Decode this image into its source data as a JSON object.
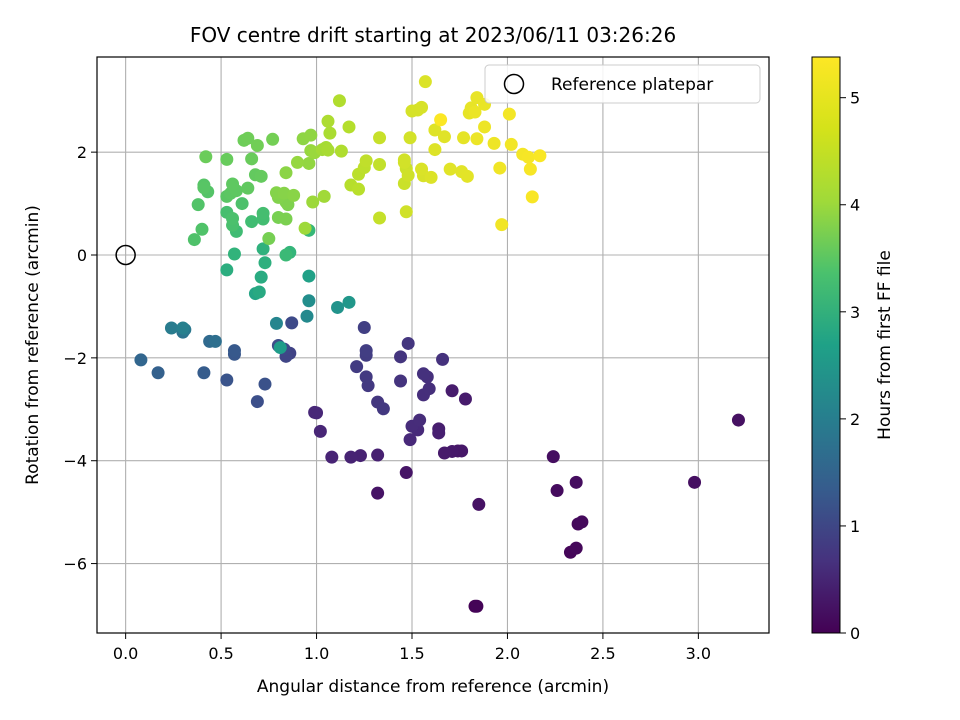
{
  "chart_data": {
    "type": "scatter",
    "title": "FOV centre drift starting at 2023/06/11 03:26:26",
    "xlabel": "Angular distance from reference (arcmin)",
    "ylabel": "Rotation from reference (arcmin)",
    "colorbar_label": "Hours from first FF file",
    "xlim": [
      -0.15,
      3.37
    ],
    "ylim": [
      -7.35,
      3.85
    ],
    "xticks": [
      0.0,
      0.5,
      1.0,
      1.5,
      2.0,
      2.5,
      3.0
    ],
    "xtick_labels": [
      "0.0",
      "0.5",
      "1.0",
      "1.5",
      "2.0",
      "2.5",
      "3.0"
    ],
    "yticks": [
      -6,
      -4,
      -2,
      0,
      2
    ],
    "ytick_labels": [
      "−6",
      "−4",
      "−2",
      "0",
      "2"
    ],
    "clim": [
      0,
      5.38
    ],
    "cticks": [
      0,
      1,
      2,
      3,
      4,
      5
    ],
    "ctick_labels": [
      "0",
      "1",
      "2",
      "3",
      "4",
      "5"
    ],
    "colormap": "viridis",
    "grid": true,
    "legend": {
      "placement": "upper right",
      "entries": [
        "Reference platepar"
      ]
    },
    "reference_point": {
      "x": 0.0,
      "y": 0.0,
      "label": "Reference platepar"
    },
    "points": [
      [
        1.83,
        -6.83,
        0.02
      ],
      [
        1.84,
        -6.83,
        0.05
      ],
      [
        2.33,
        -5.78,
        0.08
      ],
      [
        2.36,
        -5.7,
        0.1
      ],
      [
        2.37,
        -5.23,
        0.12
      ],
      [
        2.39,
        -5.19,
        0.14
      ],
      [
        2.26,
        -4.58,
        0.16
      ],
      [
        2.36,
        -4.42,
        0.18
      ],
      [
        2.24,
        -3.92,
        0.2
      ],
      [
        2.98,
        -4.42,
        0.22
      ],
      [
        3.21,
        -3.21,
        0.24
      ],
      [
        1.85,
        -4.85,
        0.26
      ],
      [
        1.32,
        -4.63,
        0.28
      ],
      [
        1.47,
        -4.23,
        0.3
      ],
      [
        1.74,
        -3.81,
        0.32
      ],
      [
        1.76,
        -3.81,
        0.34
      ],
      [
        1.71,
        -3.82,
        0.36
      ],
      [
        1.67,
        -3.85,
        0.38
      ],
      [
        1.78,
        -2.8,
        0.4
      ],
      [
        1.71,
        -2.64,
        0.42
      ],
      [
        1.64,
        -3.38,
        0.44
      ],
      [
        1.64,
        -3.46,
        0.46
      ],
      [
        1.32,
        -3.89,
        0.48
      ],
      [
        1.23,
        -3.9,
        0.5
      ],
      [
        1.18,
        -3.93,
        0.52
      ],
      [
        1.08,
        -3.93,
        0.54
      ],
      [
        1.02,
        -3.43,
        0.56
      ],
      [
        1.0,
        -3.07,
        0.58
      ],
      [
        0.99,
        -3.06,
        0.6
      ],
      [
        1.49,
        -3.59,
        0.62
      ],
      [
        1.53,
        -3.4,
        0.64
      ],
      [
        1.5,
        -3.33,
        0.66
      ],
      [
        1.54,
        -3.21,
        0.68
      ],
      [
        1.56,
        -2.72,
        0.7
      ],
      [
        1.59,
        -2.6,
        0.72
      ],
      [
        1.58,
        -2.37,
        0.74
      ],
      [
        1.56,
        -2.31,
        0.76
      ],
      [
        1.66,
        -2.03,
        0.78
      ],
      [
        1.44,
        -2.45,
        0.8
      ],
      [
        1.44,
        -1.98,
        0.82
      ],
      [
        1.48,
        -1.72,
        0.84
      ],
      [
        1.32,
        -2.86,
        0.86
      ],
      [
        1.35,
        -2.99,
        0.88
      ],
      [
        1.27,
        -2.54,
        0.9
      ],
      [
        1.26,
        -2.37,
        0.92
      ],
      [
        1.21,
        -2.17,
        0.94
      ],
      [
        1.26,
        -1.95,
        0.96
      ],
      [
        1.26,
        -1.86,
        0.98
      ],
      [
        1.25,
        -1.41,
        1.0
      ],
      [
        0.86,
        -1.91,
        1.05
      ],
      [
        0.84,
        -1.97,
        1.1
      ],
      [
        0.83,
        -1.83,
        1.15
      ],
      [
        0.87,
        -1.32,
        1.2
      ],
      [
        0.8,
        -1.76,
        1.25
      ],
      [
        0.69,
        -2.85,
        1.3
      ],
      [
        0.73,
        -2.51,
        1.35
      ],
      [
        0.53,
        -2.43,
        1.4
      ],
      [
        0.57,
        -1.93,
        1.45
      ],
      [
        0.57,
        -1.86,
        1.5
      ],
      [
        0.41,
        -2.29,
        1.55
      ],
      [
        0.17,
        -2.29,
        1.65
      ],
      [
        0.08,
        -2.04,
        1.75
      ],
      [
        0.44,
        -1.68,
        1.85
      ],
      [
        0.47,
        -1.68,
        1.95
      ],
      [
        0.3,
        -1.5,
        2.05
      ],
      [
        0.31,
        -1.45,
        2.15
      ],
      [
        0.24,
        -1.42,
        2.25
      ],
      [
        0.3,
        -1.42,
        2.35
      ],
      [
        0.79,
        -1.33,
        2.45
      ],
      [
        0.95,
        -1.19,
        2.55
      ],
      [
        0.96,
        -0.89,
        2.65
      ],
      [
        1.11,
        -1.02,
        2.75
      ],
      [
        1.17,
        -0.92,
        2.85
      ],
      [
        0.81,
        -1.8,
        2.95
      ],
      [
        0.96,
        -0.41,
        3.05
      ],
      [
        0.68,
        -0.75,
        3.15
      ],
      [
        0.7,
        -0.72,
        3.25
      ],
      [
        0.71,
        -0.43,
        3.3
      ],
      [
        0.53,
        -0.29,
        3.35
      ],
      [
        0.73,
        -0.15,
        3.4
      ],
      [
        0.72,
        0.12,
        3.45
      ],
      [
        0.57,
        0.02,
        3.5
      ],
      [
        0.86,
        0.05,
        3.55
      ],
      [
        0.96,
        0.48,
        3.6
      ],
      [
        0.84,
        0.0,
        3.65
      ],
      [
        0.58,
        0.46,
        3.7
      ],
      [
        0.66,
        0.65,
        3.72
      ],
      [
        0.72,
        0.7,
        3.74
      ],
      [
        0.72,
        0.81,
        3.76
      ],
      [
        0.53,
        0.83,
        3.78
      ],
      [
        0.56,
        0.58,
        3.8
      ],
      [
        0.56,
        0.71,
        3.82
      ],
      [
        0.61,
        1.0,
        3.84
      ],
      [
        0.36,
        0.3,
        3.86
      ],
      [
        0.4,
        0.5,
        3.88
      ],
      [
        0.38,
        0.98,
        3.9
      ],
      [
        0.43,
        1.23,
        3.92
      ],
      [
        0.41,
        1.36,
        3.94
      ],
      [
        0.41,
        1.31,
        3.96
      ],
      [
        0.53,
        1.14,
        3.98
      ],
      [
        0.55,
        1.2,
        4.0
      ],
      [
        0.58,
        1.25,
        4.02
      ],
      [
        0.56,
        1.38,
        4.04
      ],
      [
        0.64,
        1.3,
        4.06
      ],
      [
        0.68,
        1.56,
        4.08
      ],
      [
        0.71,
        1.53,
        4.1
      ],
      [
        0.53,
        1.86,
        4.12
      ],
      [
        0.66,
        1.87,
        4.14
      ],
      [
        0.42,
        1.91,
        4.16
      ],
      [
        0.62,
        2.23,
        4.18
      ],
      [
        0.64,
        2.27,
        4.2
      ],
      [
        0.69,
        2.13,
        4.22
      ],
      [
        0.77,
        2.25,
        4.24
      ],
      [
        0.75,
        0.32,
        4.26
      ],
      [
        0.8,
        0.73,
        4.28
      ],
      [
        0.84,
        0.7,
        4.3
      ],
      [
        0.85,
        0.98,
        4.32
      ],
      [
        0.84,
        1.03,
        4.34
      ],
      [
        0.8,
        1.12,
        4.36
      ],
      [
        0.79,
        1.21,
        4.38
      ],
      [
        0.83,
        1.2,
        4.4
      ],
      [
        0.88,
        1.16,
        4.42
      ],
      [
        0.84,
        1.6,
        4.44
      ],
      [
        0.93,
        2.26,
        4.46
      ],
      [
        0.97,
        2.33,
        4.48
      ],
      [
        0.96,
        1.78,
        4.5
      ],
      [
        0.9,
        1.8,
        4.52
      ],
      [
        0.97,
        2.03,
        4.54
      ],
      [
        0.99,
        1.99,
        4.56
      ],
      [
        0.98,
        1.03,
        4.58
      ],
      [
        0.94,
        0.52,
        4.6
      ],
      [
        1.04,
        1.14,
        4.62
      ],
      [
        1.03,
        2.05,
        4.64
      ],
      [
        1.05,
        2.09,
        4.66
      ],
      [
        1.06,
        2.04,
        4.68
      ],
      [
        1.07,
        2.37,
        4.7
      ],
      [
        1.06,
        2.6,
        4.72
      ],
      [
        1.13,
        2.02,
        4.74
      ],
      [
        1.12,
        3.0,
        4.76
      ],
      [
        1.17,
        2.49,
        4.78
      ],
      [
        1.18,
        1.36,
        4.8
      ],
      [
        1.22,
        1.28,
        4.82
      ],
      [
        1.22,
        1.57,
        4.84
      ],
      [
        1.25,
        1.7,
        4.86
      ],
      [
        1.26,
        1.83,
        4.88
      ],
      [
        1.33,
        1.76,
        4.9
      ],
      [
        1.33,
        0.72,
        4.92
      ],
      [
        1.33,
        2.28,
        4.94
      ],
      [
        1.46,
        1.39,
        4.96
      ],
      [
        1.47,
        1.68,
        4.98
      ],
      [
        1.48,
        1.55,
        5.0
      ],
      [
        1.47,
        0.84,
        5.01
      ],
      [
        1.46,
        1.85,
        5.02
      ],
      [
        1.46,
        1.8,
        5.03
      ],
      [
        1.49,
        2.28,
        5.04
      ],
      [
        1.5,
        2.8,
        5.05
      ],
      [
        1.53,
        2.82,
        5.06
      ],
      [
        1.55,
        2.87,
        5.07
      ],
      [
        1.56,
        1.54,
        5.08
      ],
      [
        1.55,
        1.67,
        5.09
      ],
      [
        1.57,
        3.37,
        5.1
      ],
      [
        1.6,
        1.51,
        5.11
      ],
      [
        1.62,
        2.05,
        5.12
      ],
      [
        1.62,
        2.43,
        5.13
      ],
      [
        1.67,
        2.3,
        5.14
      ],
      [
        1.7,
        1.67,
        5.15
      ],
      [
        1.76,
        1.62,
        5.16
      ],
      [
        1.79,
        1.53,
        5.17
      ],
      [
        1.77,
        2.28,
        5.18
      ],
      [
        1.8,
        2.76,
        5.19
      ],
      [
        1.81,
        2.86,
        5.2
      ],
      [
        1.84,
        3.06,
        5.21
      ],
      [
        1.88,
        2.93,
        5.22
      ],
      [
        1.83,
        2.78,
        5.23
      ],
      [
        1.84,
        2.26,
        5.24
      ],
      [
        1.88,
        2.49,
        5.25
      ],
      [
        1.93,
        2.17,
        5.26
      ],
      [
        1.96,
        1.69,
        5.27
      ],
      [
        1.97,
        0.59,
        5.28
      ],
      [
        2.02,
        2.15,
        5.29
      ],
      [
        2.01,
        2.74,
        5.3
      ],
      [
        2.08,
        1.96,
        5.31
      ],
      [
        2.11,
        1.9,
        5.32
      ],
      [
        2.12,
        1.67,
        5.33
      ],
      [
        2.13,
        1.13,
        5.34
      ],
      [
        2.17,
        1.93,
        5.35
      ],
      [
        1.65,
        2.63,
        5.36
      ]
    ]
  }
}
